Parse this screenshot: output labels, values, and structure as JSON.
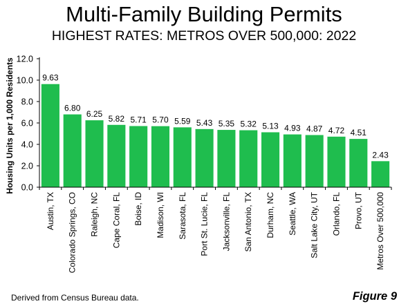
{
  "title": "Multi-Family Building Permits",
  "subtitle": "HIGHEST RATES: METROS OVER 500,000: 2022",
  "source_note": "Derived from Census Bureau data.",
  "figure_label": "Figure 9",
  "colors": {
    "bar": "#1fbd4e",
    "axis": "#000000"
  },
  "chart_data": {
    "type": "bar",
    "title": "Multi-Family Building Permits",
    "subtitle": "HIGHEST RATES: METROS OVER 500,000: 2022",
    "xlabel": "",
    "ylabel": "Housing Units per 1,000 Residents",
    "ylim": [
      0,
      12
    ],
    "yticks": [
      "0.0",
      "2.0",
      "4.0",
      "6.0",
      "8.0",
      "10.0",
      "12.0"
    ],
    "grid": false,
    "categories": [
      "Austin, TX",
      "Colorado Springs, CO",
      "Raleigh, NC",
      "Cape Coral, FL",
      "Boise, ID",
      "Madison, WI",
      "Sarasota, FL",
      "Port St. Lucie, FL",
      "Jacksonville, FL",
      "San Antonio, TX",
      "Durham, NC",
      "Seattle, WA",
      "Salt Lake City, UT",
      "Orlando, FL",
      "Provo, UT",
      "Metros Over 500,000"
    ],
    "values": [
      9.63,
      6.8,
      6.25,
      5.82,
      5.71,
      5.7,
      5.59,
      5.43,
      5.35,
      5.32,
      5.13,
      4.93,
      4.87,
      4.72,
      4.51,
      2.43
    ],
    "value_labels": [
      "9.63",
      "6.80",
      "6.25",
      "5.82",
      "5.71",
      "5.70",
      "5.59",
      "5.43",
      "5.35",
      "5.32",
      "5.13",
      "4.93",
      "4.87",
      "4.72",
      "4.51",
      "2.43"
    ]
  }
}
